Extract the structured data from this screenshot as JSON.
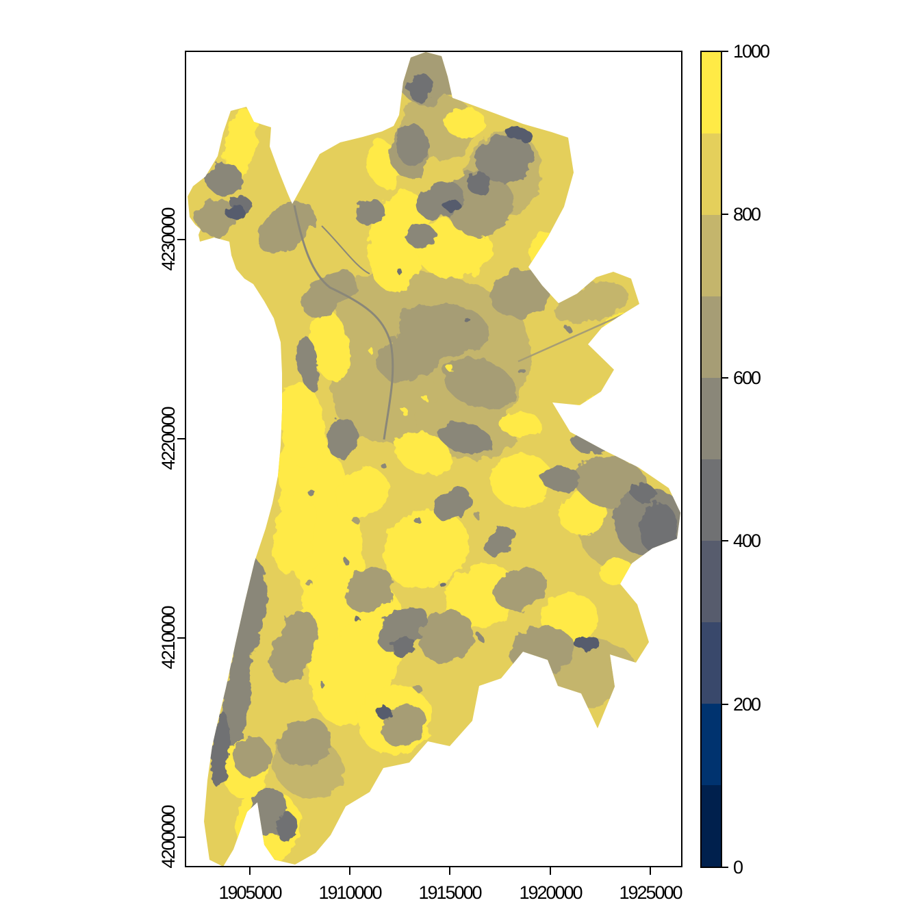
{
  "figure": {
    "background": "#FFFFFF",
    "axes": {
      "x_ticks": [
        "1905000",
        "1910000",
        "1915000",
        "1920000",
        "1925000"
      ],
      "y_ticks": [
        "4200000",
        "4210000",
        "4220000",
        "4230000"
      ]
    },
    "legend": {
      "ticks_top_to_bottom": [
        "1000",
        "800",
        "600",
        "400",
        "200",
        "0"
      ]
    }
  },
  "chart_data": {
    "type": "heatmap",
    "title": "",
    "xlabel": "",
    "ylabel": "",
    "x_tick_values": [
      1905000,
      1910000,
      1915000,
      1920000,
      1925000
    ],
    "y_tick_values": [
      4200000,
      4210000,
      4220000,
      4230000
    ],
    "xlim": [
      1901900,
      1926700
    ],
    "ylim": [
      4198500,
      4239450
    ],
    "grid": false,
    "legend_position": "right-colorbar",
    "colorbar": {
      "range": [
        0,
        1000
      ],
      "tick_values": [
        0,
        200,
        400,
        600,
        800,
        1000
      ],
      "bins": [
        {
          "from": 0,
          "to": 100,
          "color": "#00204D"
        },
        {
          "from": 100,
          "to": 200,
          "color": "#00336F"
        },
        {
          "from": 200,
          "to": 300,
          "color": "#39486B"
        },
        {
          "from": 300,
          "to": 400,
          "color": "#575C6D"
        },
        {
          "from": 400,
          "to": 500,
          "color": "#707173"
        },
        {
          "from": 500,
          "to": 600,
          "color": "#8A8779"
        },
        {
          "from": 600,
          "to": 700,
          "color": "#A69D75"
        },
        {
          "from": 700,
          "to": 800,
          "color": "#C4B56C"
        },
        {
          "from": 800,
          "to": 900,
          "color": "#E4CF5B"
        },
        {
          "from": 900,
          "to": 1000,
          "color": "#FFEA46"
        }
      ]
    },
    "map": {
      "shape": "irregular raster region; white outside boundary",
      "dominant_value_bands": "mostly 700-1000 (yellows); central valley floor 600-800 (khaki/olive); lowest cells 400-600 (grays) along west edge, north tip, northeast patches and east lobe tip"
    }
  }
}
